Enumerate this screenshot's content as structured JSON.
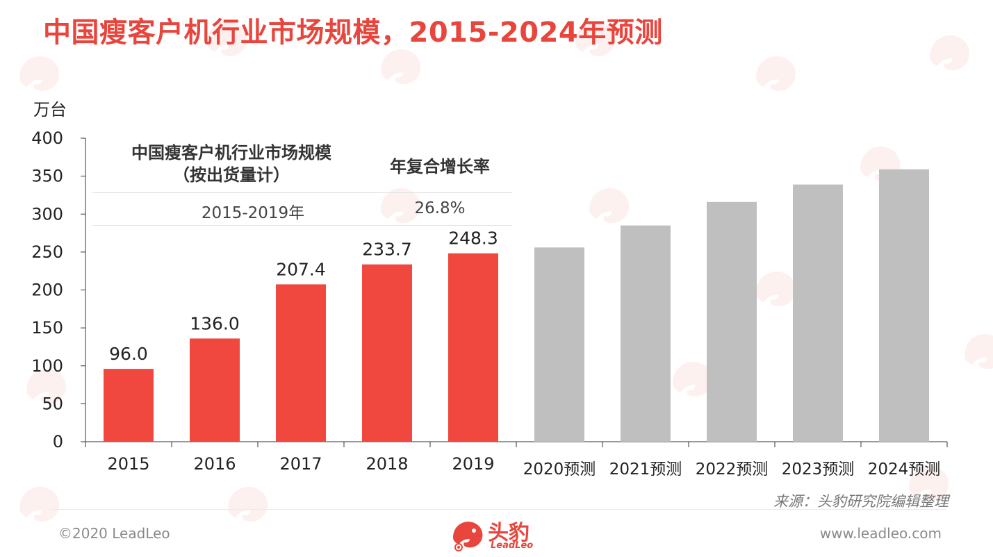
{
  "title": "中国瘦客户机行业市场规模，2015-2024年预测",
  "unit_label": "万台",
  "cagr_table": {
    "header_metric": "中国瘦客户机行业市场规模（按出货量计）",
    "header_rate": "年复合增长率",
    "period": "2015-2019年",
    "rate": "26.8%"
  },
  "source": "来源：头豹研究院编辑整理",
  "footer": {
    "copyright": "©2020 LeadLeo",
    "website": "www.leadleo.com",
    "logo_text": "头豹",
    "logo_sub": "LeadLeo"
  },
  "colors": {
    "accent": "#e8453c",
    "actual_bar": "#f0483e",
    "forecast_bar": "#bfbfbf"
  },
  "chart_data": {
    "type": "bar",
    "categories": [
      "2015",
      "2016",
      "2017",
      "2018",
      "2019",
      "2020预测",
      "2021预测",
      "2022预测",
      "2023预测",
      "2024预测"
    ],
    "values": [
      96.0,
      136.0,
      207.4,
      233.7,
      248.3,
      256,
      285,
      316,
      339,
      359
    ],
    "data_labels": [
      "96.0",
      "136.0",
      "207.4",
      "233.7",
      "248.3",
      "",
      "",
      "",
      "",
      ""
    ],
    "bar_kind": [
      "actual",
      "actual",
      "actual",
      "actual",
      "actual",
      "forecast",
      "forecast",
      "forecast",
      "forecast",
      "forecast"
    ],
    "ylim": [
      0,
      400
    ],
    "yticks": [
      0,
      50,
      100,
      150,
      200,
      250,
      300,
      350,
      400
    ],
    "ylabel": "万台",
    "xlabel": "",
    "grid": false,
    "legend": "none"
  }
}
